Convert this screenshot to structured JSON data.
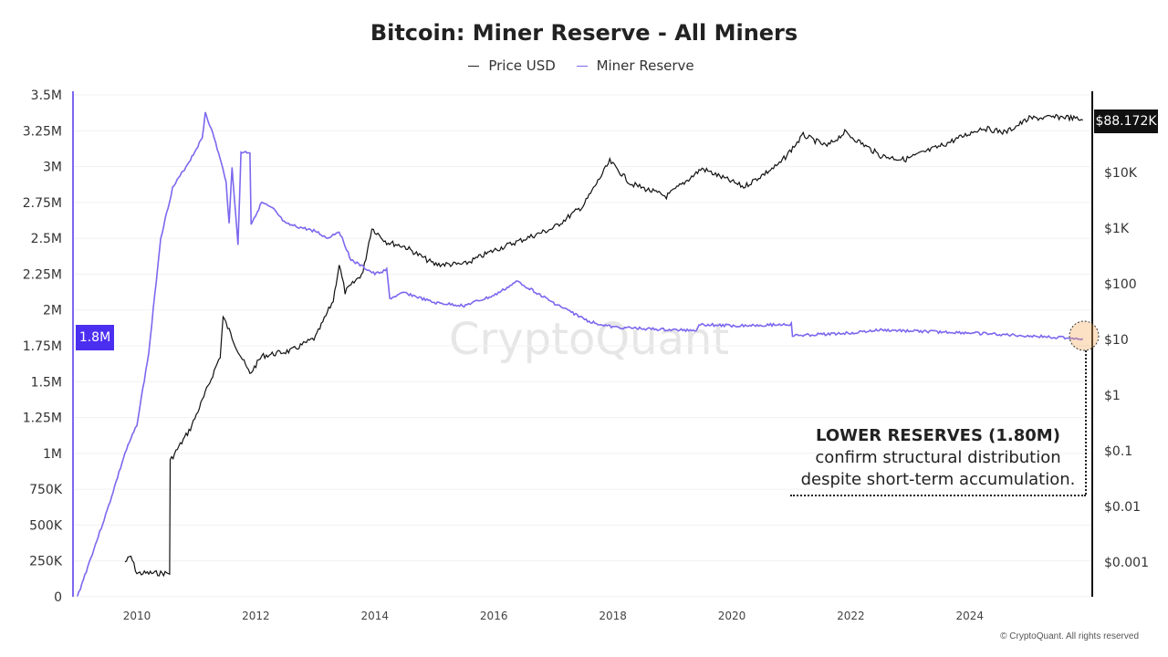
{
  "chart_data": {
    "type": "line",
    "title": "Bitcoin: Miner Reserve - All Miners",
    "legend": [
      "Price USD",
      "Miner Reserve"
    ],
    "legend_placement": "top-center",
    "colors": {
      "price": "#222222",
      "reserve": "#7b68ee",
      "highlight": "#4b2ff0"
    },
    "x_ticks": [
      "2010",
      "2012",
      "2014",
      "2016",
      "2018",
      "2020",
      "2022",
      "2024"
    ],
    "left_axis": {
      "ticks": [
        "0",
        "250K",
        "500K",
        "750K",
        "1M",
        "1.25M",
        "1.5M",
        "1.75M",
        "2M",
        "2.25M",
        "2.5M",
        "2.75M",
        "3M",
        "3.25M",
        "3.5M"
      ],
      "ylim": [
        0,
        3500000
      ]
    },
    "right_axis": {
      "scale": "log",
      "ticks": [
        "$0.001",
        "$0.01",
        "$0.1",
        "$1",
        "$10",
        "$100",
        "$1K",
        "$10K"
      ]
    },
    "current_reserve_label": "1.8M",
    "current_price_label": "$88.172K",
    "series": [
      {
        "name": "Miner Reserve",
        "unit": "M BTC",
        "points": [
          [
            2009.0,
            0
          ],
          [
            2009.5,
            0.6
          ],
          [
            2009.8,
            1.0
          ],
          [
            2010.0,
            1.2
          ],
          [
            2010.2,
            1.7
          ],
          [
            2010.4,
            2.5
          ],
          [
            2010.6,
            2.85
          ],
          [
            2010.9,
            3.05
          ],
          [
            2011.1,
            3.2
          ],
          [
            2011.15,
            3.38
          ],
          [
            2011.3,
            3.2
          ],
          [
            2011.5,
            2.9
          ],
          [
            2011.55,
            2.6
          ],
          [
            2011.6,
            3.0
          ],
          [
            2011.7,
            2.45
          ],
          [
            2011.75,
            3.1
          ],
          [
            2011.9,
            3.1
          ],
          [
            2011.92,
            2.6
          ],
          [
            2012.1,
            2.75
          ],
          [
            2012.3,
            2.7
          ],
          [
            2012.5,
            2.6
          ],
          [
            2013.0,
            2.55
          ],
          [
            2013.2,
            2.5
          ],
          [
            2013.4,
            2.55
          ],
          [
            2013.6,
            2.35
          ],
          [
            2014.0,
            2.25
          ],
          [
            2014.2,
            2.28
          ],
          [
            2014.25,
            2.08
          ],
          [
            2014.5,
            2.12
          ],
          [
            2015.0,
            2.05
          ],
          [
            2015.5,
            2.03
          ],
          [
            2016.0,
            2.1
          ],
          [
            2016.4,
            2.2
          ],
          [
            2016.8,
            2.1
          ],
          [
            2017.0,
            2.05
          ],
          [
            2017.6,
            1.92
          ],
          [
            2018.0,
            1.88
          ],
          [
            2018.5,
            1.87
          ],
          [
            2019.0,
            1.86
          ],
          [
            2019.4,
            1.86
          ],
          [
            2019.45,
            1.9
          ],
          [
            2020.0,
            1.89
          ],
          [
            2021.0,
            1.9
          ],
          [
            2021.02,
            1.82
          ],
          [
            2022.0,
            1.84
          ],
          [
            2022.5,
            1.86
          ],
          [
            2024.0,
            1.84
          ],
          [
            2025.9,
            1.8
          ]
        ]
      },
      {
        "name": "Price USD",
        "unit": "log10 USD",
        "points": [
          [
            2009.8,
            -3.0
          ],
          [
            2009.9,
            -2.9
          ],
          [
            2010.0,
            -3.2
          ],
          [
            2010.55,
            -3.2
          ],
          [
            2010.56,
            -1.18
          ],
          [
            2010.9,
            -0.6
          ],
          [
            2011.1,
            -0.1
          ],
          [
            2011.4,
            0.7
          ],
          [
            2011.45,
            1.4
          ],
          [
            2011.7,
            0.8
          ],
          [
            2011.9,
            0.38
          ],
          [
            2012.1,
            0.7
          ],
          [
            2012.6,
            0.8
          ],
          [
            2013.0,
            1.03
          ],
          [
            2013.3,
            1.7
          ],
          [
            2013.4,
            2.35
          ],
          [
            2013.5,
            1.85
          ],
          [
            2013.8,
            2.2
          ],
          [
            2013.9,
            2.75
          ],
          [
            2013.95,
            3.0
          ],
          [
            2014.2,
            2.75
          ],
          [
            2014.5,
            2.67
          ],
          [
            2015.0,
            2.35
          ],
          [
            2015.5,
            2.35
          ],
          [
            2016.0,
            2.6
          ],
          [
            2016.5,
            2.8
          ],
          [
            2017.0,
            3.0
          ],
          [
            2017.5,
            3.4
          ],
          [
            2017.95,
            4.2
          ],
          [
            2018.3,
            3.8
          ],
          [
            2018.9,
            3.57
          ],
          [
            2019.5,
            4.07
          ],
          [
            2020.2,
            3.74
          ],
          [
            2020.8,
            4.15
          ],
          [
            2021.2,
            4.67
          ],
          [
            2021.6,
            4.47
          ],
          [
            2021.9,
            4.72
          ],
          [
            2022.5,
            4.3
          ],
          [
            2022.9,
            4.23
          ],
          [
            2023.5,
            4.47
          ],
          [
            2024.2,
            4.8
          ],
          [
            2024.6,
            4.72
          ],
          [
            2025.0,
            4.97
          ],
          [
            2025.6,
            5.0
          ],
          [
            2025.9,
            4.94
          ]
        ]
      }
    ],
    "annotation": {
      "heading": "LOWER RESERVES (1.80M)",
      "line1": "confirm structural distribution",
      "line2": "despite short-term accumulation."
    }
  },
  "watermark": "CryptoQuant",
  "copyright": "© CryptoQuant. All rights reserved"
}
